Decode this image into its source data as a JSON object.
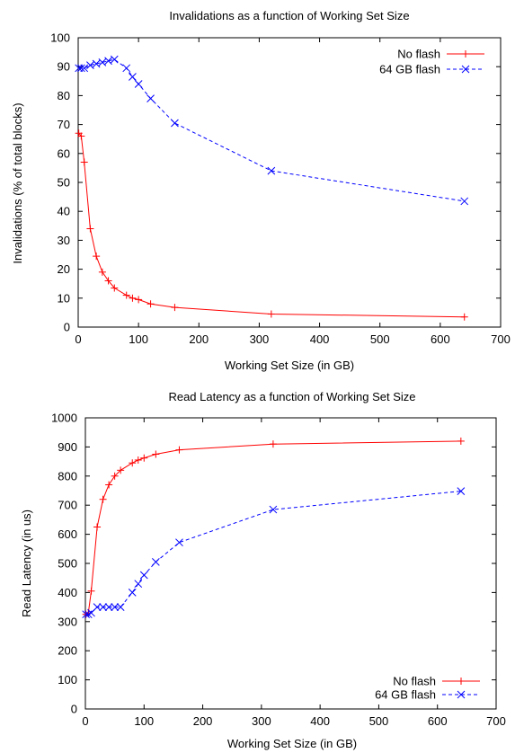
{
  "chart_data": [
    {
      "type": "line",
      "title": "Invalidations as a function of Working Set Size",
      "xlabel": "Working Set Size (in GB)",
      "ylabel": "Invalidations (% of total blocks)",
      "xlim": [
        0,
        700
      ],
      "ylim": [
        0,
        100
      ],
      "xticks": [
        0,
        100,
        200,
        300,
        400,
        500,
        600,
        700
      ],
      "yticks": [
        0,
        10,
        20,
        30,
        40,
        50,
        60,
        70,
        80,
        90,
        100
      ],
      "grid": false,
      "legend_position": "top-right",
      "series": [
        {
          "name": "No flash",
          "color": "#ff0000",
          "line_style": "solid",
          "marker": "plus",
          "x": [
            1,
            5,
            10,
            20,
            30,
            40,
            50,
            60,
            80,
            90,
            100,
            120,
            160,
            320,
            640
          ],
          "y": [
            67,
            66,
            57,
            34,
            24.5,
            19,
            16,
            13.5,
            11,
            10,
            9.5,
            8,
            6.8,
            4.5,
            3.5
          ]
        },
        {
          "name": "64 GB flash",
          "color": "#0000ff",
          "line_style": "dashed",
          "marker": "cross",
          "x": [
            1,
            5,
            10,
            20,
            30,
            40,
            50,
            60,
            80,
            90,
            100,
            120,
            160,
            320,
            640
          ],
          "y": [
            89.5,
            89.5,
            89.5,
            90.5,
            91,
            91.5,
            92,
            92.5,
            89.5,
            86.5,
            84,
            79,
            70.5,
            54,
            43.5
          ]
        }
      ]
    },
    {
      "type": "line",
      "title": "Read Latency as a function of Working Set Size",
      "xlabel": "Working Set Size (in GB)",
      "ylabel": "Read Latency (in us)",
      "xlim": [
        0,
        700
      ],
      "ylim": [
        0,
        1000
      ],
      "xticks": [
        0,
        100,
        200,
        300,
        400,
        500,
        600,
        700
      ],
      "yticks": [
        0,
        100,
        200,
        300,
        400,
        500,
        600,
        700,
        800,
        900,
        1000
      ],
      "grid": false,
      "legend_position": "bottom-right",
      "series": [
        {
          "name": "No flash",
          "color": "#ff0000",
          "line_style": "solid",
          "marker": "plus",
          "x": [
            1,
            5,
            10,
            20,
            30,
            40,
            50,
            60,
            80,
            90,
            100,
            120,
            160,
            320,
            640
          ],
          "y": [
            325,
            330,
            405,
            625,
            720,
            770,
            800,
            820,
            845,
            855,
            862,
            875,
            890,
            910,
            920
          ]
        },
        {
          "name": "64 GB flash",
          "color": "#0000ff",
          "line_style": "dashed",
          "marker": "cross",
          "x": [
            1,
            5,
            10,
            20,
            30,
            40,
            50,
            60,
            80,
            90,
            100,
            120,
            160,
            320,
            640
          ],
          "y": [
            325,
            325,
            330,
            350,
            350,
            350,
            350,
            350,
            400,
            430,
            460,
            505,
            572,
            685,
            748
          ]
        }
      ]
    }
  ]
}
